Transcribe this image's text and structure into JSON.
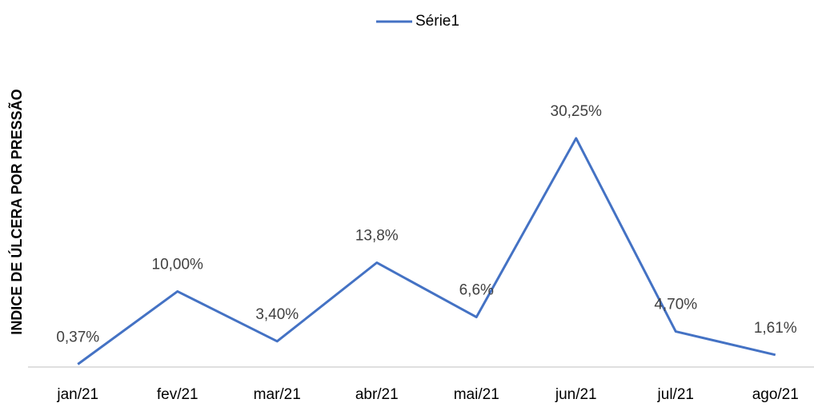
{
  "chart_data": {
    "type": "line",
    "y_label": "INDICE DE ÚLCERA POR PRESSÃO",
    "categories": [
      "jan/21",
      "fev/21",
      "mar/21",
      "abr/21",
      "mai/21",
      "jun/21",
      "jul/21",
      "ago/21"
    ],
    "series": [
      {
        "name": "Série1",
        "color": "#4472c4",
        "values": [
          0.37,
          10,
          3.4,
          13.8,
          6.6,
          30.25,
          4.7,
          1.61
        ],
        "value_labels": [
          "0,37%",
          "10,00%",
          "3,40%",
          "13,8%",
          "6,6%",
          "30,25%",
          "4,70%",
          "1,61%"
        ]
      }
    ],
    "ylim": [
      0,
      35
    ],
    "legend": "top"
  }
}
